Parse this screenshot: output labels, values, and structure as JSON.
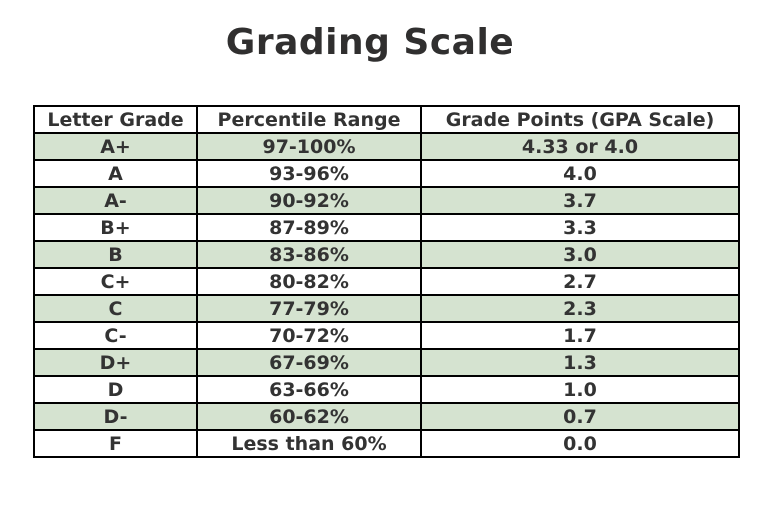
{
  "title": "Grading Scale",
  "colors": {
    "stripe_green": "#d5e3d0",
    "row_white": "#ffffff",
    "border": "#000000",
    "text": "#333333",
    "background": "#ffffff"
  },
  "table": {
    "headers": [
      "Letter Grade",
      "Percentile Range",
      "Grade Points (GPA Scale)"
    ],
    "rows": [
      {
        "letter": "A+",
        "percentile": "97-100%",
        "points": "4.33 or 4.0"
      },
      {
        "letter": "A",
        "percentile": "93-96%",
        "points": "4.0"
      },
      {
        "letter": "A-",
        "percentile": "90-92%",
        "points": "3.7"
      },
      {
        "letter": "B+",
        "percentile": "87-89%",
        "points": "3.3"
      },
      {
        "letter": "B",
        "percentile": "83-86%",
        "points": "3.0"
      },
      {
        "letter": "C+",
        "percentile": "80-82%",
        "points": "2.7"
      },
      {
        "letter": "C",
        "percentile": "77-79%",
        "points": "2.3"
      },
      {
        "letter": "C-",
        "percentile": "70-72%",
        "points": "1.7"
      },
      {
        "letter": "D+",
        "percentile": "67-69%",
        "points": "1.3"
      },
      {
        "letter": "D",
        "percentile": "63-66%",
        "points": "1.0"
      },
      {
        "letter": "D-",
        "percentile": "60-62%",
        "points": "0.7"
      },
      {
        "letter": "F",
        "percentile": "Less than 60%",
        "points": "0.0"
      }
    ]
  },
  "chart_data": {
    "type": "table",
    "title": "Grading Scale",
    "columns": [
      "Letter Grade",
      "Percentile Range",
      "Grade Points (GPA Scale)"
    ],
    "rows": [
      [
        "A+",
        "97-100%",
        "4.33 or 4.0"
      ],
      [
        "A",
        "93-96%",
        "4.0"
      ],
      [
        "A-",
        "90-92%",
        "3.7"
      ],
      [
        "B+",
        "87-89%",
        "3.3"
      ],
      [
        "B",
        "83-86%",
        "3.0"
      ],
      [
        "C+",
        "80-82%",
        "2.7"
      ],
      [
        "C",
        "77-79%",
        "2.3"
      ],
      [
        "C-",
        "70-72%",
        "1.7"
      ],
      [
        "D+",
        "67-69%",
        "1.3"
      ],
      [
        "D",
        "63-66%",
        "1.0"
      ],
      [
        "D-",
        "60-62%",
        "0.7"
      ],
      [
        "F",
        "Less than 60%",
        "0.0"
      ]
    ],
    "layout_hints": {
      "header_background": "#ffffff",
      "odd_row_background": "#d5e3d0",
      "even_row_background": "#ffffff",
      "border_color": "#000000",
      "border_width_px": 2,
      "text_bold": true,
      "text_align": "center"
    }
  }
}
